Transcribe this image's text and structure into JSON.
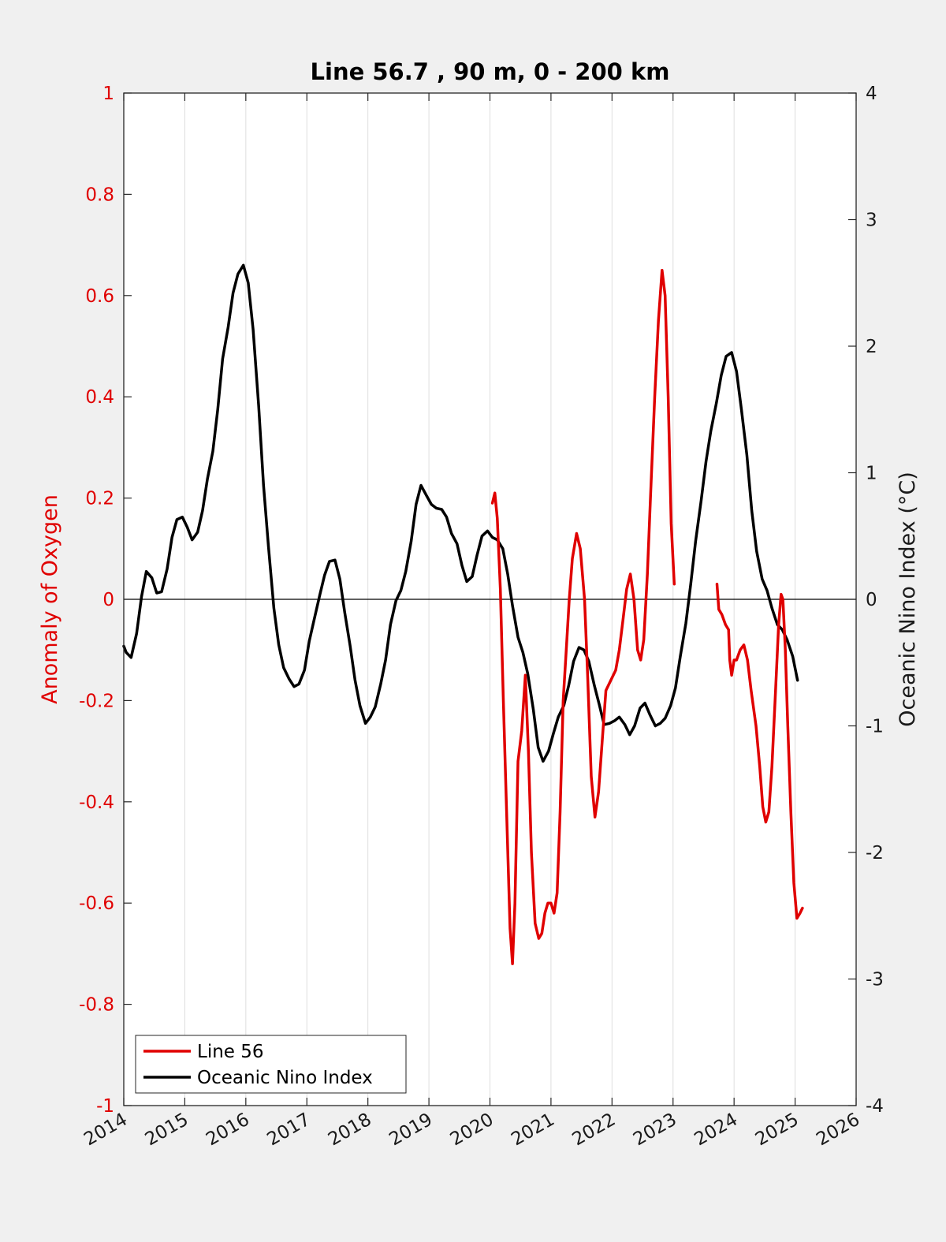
{
  "chart_data": {
    "type": "line",
    "title": "Line 56.7 , 90 m, 0 - 200 km",
    "ylabel_left": "Anomaly of Oxygen",
    "ylabel_right": "Oceanic Nino Index (°C)",
    "xlim": [
      2014,
      2026
    ],
    "ylim_left": [
      -1,
      1
    ],
    "ylim_right": [
      -4,
      4
    ],
    "x_ticks": [
      "2014",
      "2015",
      "2016",
      "2017",
      "2018",
      "2019",
      "2020",
      "2021",
      "2022",
      "2023",
      "2024",
      "2025",
      "2026"
    ],
    "y_ticks_left": [
      "1",
      "0.8",
      "0.6",
      "0.4",
      "0.2",
      "0",
      "-0.2",
      "-0.4",
      "-0.6",
      "-0.8",
      "-1"
    ],
    "y_ticks_right": [
      "4",
      "3",
      "2",
      "1",
      "0",
      "-1",
      "-2",
      "-3",
      "-4"
    ],
    "grid": "vertical",
    "legend_position": "bottom-left",
    "colors": {
      "line56": "#e00000",
      "oni": "#000000",
      "left_axis": "#e00000"
    },
    "series": [
      {
        "name": "Line 56",
        "axis": "left",
        "segments": [
          [
            [
              2020.04,
              0.19
            ],
            [
              2020.08,
              0.21
            ],
            [
              2020.12,
              0.16
            ],
            [
              2020.17,
              0.02
            ],
            [
              2020.22,
              -0.2
            ],
            [
              2020.28,
              -0.45
            ],
            [
              2020.33,
              -0.65
            ],
            [
              2020.37,
              -0.72
            ],
            [
              2020.41,
              -0.6
            ],
            [
              2020.46,
              -0.32
            ],
            [
              2020.52,
              -0.26
            ],
            [
              2020.58,
              -0.15
            ],
            [
              2020.63,
              -0.3
            ],
            [
              2020.68,
              -0.5
            ],
            [
              2020.74,
              -0.64
            ],
            [
              2020.8,
              -0.67
            ],
            [
              2020.85,
              -0.66
            ],
            [
              2020.9,
              -0.62
            ],
            [
              2020.95,
              -0.6
            ],
            [
              2021.0,
              -0.6
            ],
            [
              2021.05,
              -0.62
            ],
            [
              2021.1,
              -0.58
            ],
            [
              2021.15,
              -0.42
            ],
            [
              2021.2,
              -0.2
            ],
            [
              2021.25,
              -0.1
            ],
            [
              2021.3,
              0.0
            ],
            [
              2021.35,
              0.08
            ],
            [
              2021.42,
              0.13
            ],
            [
              2021.48,
              0.1
            ],
            [
              2021.55,
              0.0
            ],
            [
              2021.6,
              -0.15
            ],
            [
              2021.66,
              -0.35
            ],
            [
              2021.72,
              -0.43
            ],
            [
              2021.78,
              -0.38
            ],
            [
              2021.84,
              -0.28
            ],
            [
              2021.9,
              -0.18
            ],
            [
              2021.98,
              -0.16
            ],
            [
              2022.06,
              -0.14
            ],
            [
              2022.12,
              -0.1
            ],
            [
              2022.18,
              -0.04
            ],
            [
              2022.24,
              0.02
            ],
            [
              2022.3,
              0.05
            ],
            [
              2022.36,
              0.0
            ],
            [
              2022.42,
              -0.1
            ],
            [
              2022.47,
              -0.12
            ],
            [
              2022.52,
              -0.08
            ],
            [
              2022.58,
              0.05
            ],
            [
              2022.63,
              0.2
            ],
            [
              2022.7,
              0.4
            ],
            [
              2022.76,
              0.55
            ],
            [
              2022.82,
              0.65
            ],
            [
              2022.87,
              0.6
            ],
            [
              2022.92,
              0.4
            ],
            [
              2022.97,
              0.15
            ],
            [
              2023.02,
              0.03
            ]
          ],
          [
            [
              2023.72,
              0.03
            ],
            [
              2023.75,
              -0.02
            ],
            [
              2023.8,
              -0.03
            ],
            [
              2023.86,
              -0.05
            ],
            [
              2023.91,
              -0.06
            ],
            [
              2023.93,
              -0.12
            ],
            [
              2023.96,
              -0.15
            ],
            [
              2024.0,
              -0.12
            ],
            [
              2024.04,
              -0.12
            ],
            [
              2024.1,
              -0.1
            ],
            [
              2024.16,
              -0.09
            ],
            [
              2024.22,
              -0.12
            ],
            [
              2024.28,
              -0.18
            ],
            [
              2024.36,
              -0.25
            ],
            [
              2024.42,
              -0.33
            ],
            [
              2024.47,
              -0.41
            ],
            [
              2024.52,
              -0.44
            ],
            [
              2024.57,
              -0.42
            ],
            [
              2024.62,
              -0.33
            ],
            [
              2024.68,
              -0.18
            ],
            [
              2024.73,
              -0.05
            ],
            [
              2024.77,
              0.01
            ],
            [
              2024.8,
              0.0
            ],
            [
              2024.84,
              -0.1
            ],
            [
              2024.88,
              -0.25
            ],
            [
              2024.93,
              -0.42
            ],
            [
              2024.98,
              -0.56
            ],
            [
              2025.03,
              -0.63
            ],
            [
              2025.08,
              -0.62
            ],
            [
              2025.12,
              -0.61
            ]
          ]
        ]
      },
      {
        "name": "Oceanic Nino Index",
        "axis": "right",
        "segments": [
          [
            [
              2014.0,
              -0.37
            ],
            [
              2014.04,
              -0.42
            ],
            [
              2014.12,
              -0.46
            ],
            [
              2014.21,
              -0.27
            ],
            [
              2014.29,
              0.02
            ],
            [
              2014.37,
              0.22
            ],
            [
              2014.46,
              0.17
            ],
            [
              2014.54,
              0.05
            ],
            [
              2014.62,
              0.06
            ],
            [
              2014.71,
              0.24
            ],
            [
              2014.79,
              0.49
            ],
            [
              2014.87,
              0.63
            ],
            [
              2014.96,
              0.65
            ],
            [
              2015.04,
              0.57
            ],
            [
              2015.12,
              0.47
            ],
            [
              2015.21,
              0.53
            ],
            [
              2015.29,
              0.7
            ],
            [
              2015.37,
              0.95
            ],
            [
              2015.46,
              1.17
            ],
            [
              2015.54,
              1.5
            ],
            [
              2015.62,
              1.9
            ],
            [
              2015.71,
              2.15
            ],
            [
              2015.79,
              2.42
            ],
            [
              2015.87,
              2.57
            ],
            [
              2015.96,
              2.64
            ],
            [
              2016.04,
              2.5
            ],
            [
              2016.12,
              2.13
            ],
            [
              2016.21,
              1.53
            ],
            [
              2016.29,
              0.9
            ],
            [
              2016.37,
              0.42
            ],
            [
              2016.46,
              -0.07
            ],
            [
              2016.54,
              -0.36
            ],
            [
              2016.62,
              -0.54
            ],
            [
              2016.71,
              -0.63
            ],
            [
              2016.79,
              -0.69
            ],
            [
              2016.87,
              -0.67
            ],
            [
              2016.96,
              -0.56
            ],
            [
              2017.04,
              -0.33
            ],
            [
              2017.12,
              -0.16
            ],
            [
              2017.21,
              0.03
            ],
            [
              2017.29,
              0.19
            ],
            [
              2017.37,
              0.3
            ],
            [
              2017.46,
              0.31
            ],
            [
              2017.54,
              0.16
            ],
            [
              2017.62,
              -0.1
            ],
            [
              2017.71,
              -0.37
            ],
            [
              2017.79,
              -0.64
            ],
            [
              2017.87,
              -0.84
            ],
            [
              2017.96,
              -0.98
            ],
            [
              2018.04,
              -0.93
            ],
            [
              2018.12,
              -0.85
            ],
            [
              2018.21,
              -0.67
            ],
            [
              2018.29,
              -0.48
            ],
            [
              2018.37,
              -0.2
            ],
            [
              2018.46,
              -0.01
            ],
            [
              2018.54,
              0.07
            ],
            [
              2018.62,
              0.22
            ],
            [
              2018.71,
              0.46
            ],
            [
              2018.79,
              0.75
            ],
            [
              2018.87,
              0.9
            ],
            [
              2018.96,
              0.82
            ],
            [
              2019.04,
              0.75
            ],
            [
              2019.12,
              0.72
            ],
            [
              2019.21,
              0.71
            ],
            [
              2019.29,
              0.65
            ],
            [
              2019.37,
              0.52
            ],
            [
              2019.46,
              0.44
            ],
            [
              2019.54,
              0.27
            ],
            [
              2019.62,
              0.14
            ],
            [
              2019.71,
              0.18
            ],
            [
              2019.79,
              0.35
            ],
            [
              2019.87,
              0.5
            ],
            [
              2019.96,
              0.54
            ],
            [
              2020.04,
              0.49
            ],
            [
              2020.12,
              0.47
            ],
            [
              2020.21,
              0.4
            ],
            [
              2020.29,
              0.2
            ],
            [
              2020.37,
              -0.05
            ],
            [
              2020.46,
              -0.3
            ],
            [
              2020.54,
              -0.42
            ],
            [
              2020.62,
              -0.59
            ],
            [
              2020.71,
              -0.87
            ],
            [
              2020.79,
              -1.17
            ],
            [
              2020.87,
              -1.28
            ],
            [
              2020.96,
              -1.2
            ],
            [
              2021.04,
              -1.06
            ],
            [
              2021.12,
              -0.93
            ],
            [
              2021.21,
              -0.84
            ],
            [
              2021.29,
              -0.68
            ],
            [
              2021.37,
              -0.49
            ],
            [
              2021.46,
              -0.38
            ],
            [
              2021.54,
              -0.4
            ],
            [
              2021.62,
              -0.49
            ],
            [
              2021.71,
              -0.68
            ],
            [
              2021.79,
              -0.83
            ],
            [
              2021.87,
              -0.99
            ],
            [
              2021.96,
              -0.98
            ],
            [
              2022.04,
              -0.96
            ],
            [
              2022.12,
              -0.93
            ],
            [
              2022.21,
              -0.99
            ],
            [
              2022.29,
              -1.07
            ],
            [
              2022.37,
              -1.0
            ],
            [
              2022.46,
              -0.86
            ],
            [
              2022.54,
              -0.82
            ],
            [
              2022.62,
              -0.91
            ],
            [
              2022.71,
              -1.0
            ],
            [
              2022.79,
              -0.98
            ],
            [
              2022.87,
              -0.94
            ],
            [
              2022.96,
              -0.84
            ],
            [
              2023.04,
              -0.7
            ],
            [
              2023.12,
              -0.45
            ],
            [
              2023.21,
              -0.19
            ],
            [
              2023.29,
              0.12
            ],
            [
              2023.37,
              0.46
            ],
            [
              2023.46,
              0.78
            ],
            [
              2023.54,
              1.09
            ],
            [
              2023.62,
              1.33
            ],
            [
              2023.71,
              1.55
            ],
            [
              2023.79,
              1.77
            ],
            [
              2023.87,
              1.92
            ],
            [
              2023.96,
              1.95
            ],
            [
              2024.04,
              1.8
            ],
            [
              2024.12,
              1.5
            ],
            [
              2024.21,
              1.14
            ],
            [
              2024.29,
              0.7
            ],
            [
              2024.37,
              0.38
            ],
            [
              2024.46,
              0.16
            ],
            [
              2024.54,
              0.07
            ],
            [
              2024.62,
              -0.07
            ],
            [
              2024.71,
              -0.2
            ],
            [
              2024.79,
              -0.24
            ],
            [
              2024.87,
              -0.32
            ],
            [
              2024.96,
              -0.45
            ],
            [
              2025.04,
              -0.64
            ]
          ]
        ]
      }
    ]
  }
}
